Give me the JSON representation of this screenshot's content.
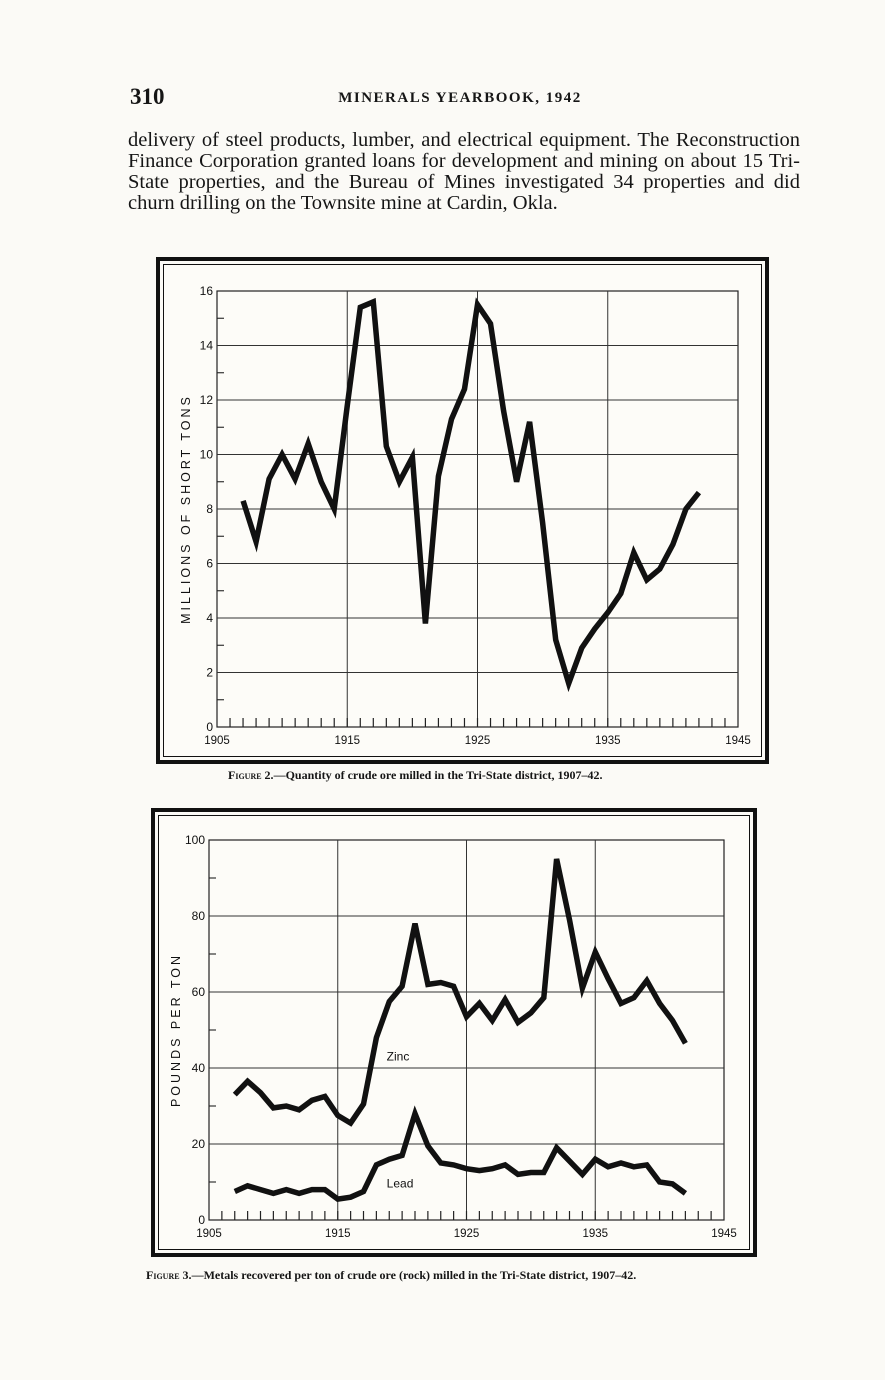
{
  "header": {
    "page_number": "310",
    "running_head": "MINERALS YEARBOOK, 1942"
  },
  "body_text": "delivery of steel products, lumber, and electrical equipment. The Reconstruction Finance Corporation granted loans for development and mining on about 15 Tri-State properties, and the Bureau of Mines investigated 34 properties and did churn drilling on the Townsite mine at Cardin, Okla.",
  "figures": [
    {
      "caption_label": "Figure 2.",
      "caption_text": "—Quantity of crude ore milled in the Tri-State district, 1907–42."
    },
    {
      "caption_label": "Figure 3.",
      "caption_text": "—Metals recovered per ton of crude ore (rock) milled in the Tri-State district, 1907–42."
    }
  ],
  "chart_data": [
    {
      "type": "line",
      "title": "",
      "xlabel": "",
      "ylabel": "MILLIONS OF SHORT TONS",
      "xlim": [
        1905,
        1945
      ],
      "ylim": [
        0,
        16
      ],
      "x_ticks": [
        1905,
        1915,
        1925,
        1935,
        1945
      ],
      "y_ticks": [
        0,
        2,
        4,
        6,
        8,
        10,
        12,
        14,
        16
      ],
      "grid": true,
      "series": [
        {
          "name": "",
          "x": [
            1907,
            1908,
            1909,
            1910,
            1911,
            1912,
            1913,
            1914,
            1915,
            1916,
            1917,
            1918,
            1919,
            1920,
            1921,
            1922,
            1923,
            1924,
            1925,
            1926,
            1927,
            1928,
            1929,
            1930,
            1931,
            1932,
            1933,
            1934,
            1935,
            1936,
            1937,
            1938,
            1939,
            1940,
            1941,
            1942
          ],
          "y": [
            8.3,
            6.8,
            9.1,
            10,
            9.1,
            10.4,
            9,
            8,
            11.8,
            15.4,
            15.6,
            10.3,
            9,
            9.9,
            3.8,
            9.2,
            11.3,
            12.4,
            15.5,
            14.8,
            11.6,
            9,
            11.2,
            7.5,
            3.2,
            1.6,
            2.9,
            3.6,
            4.2,
            4.9,
            6.4,
            5.4,
            5.8,
            6.7,
            8,
            8.6
          ]
        }
      ]
    },
    {
      "type": "line",
      "title": "",
      "xlabel": "",
      "ylabel": "POUNDS PER TON",
      "xlim": [
        1905,
        1945
      ],
      "ylim": [
        0,
        100
      ],
      "x_ticks": [
        1905,
        1915,
        1925,
        1935,
        1945
      ],
      "y_ticks": [
        0,
        20,
        40,
        60,
        80,
        100
      ],
      "grid": true,
      "series": [
        {
          "name": "Zinc",
          "x": [
            1907,
            1908,
            1909,
            1910,
            1911,
            1912,
            1913,
            1914,
            1915,
            1916,
            1917,
            1918,
            1919,
            1920,
            1921,
            1922,
            1923,
            1924,
            1925,
            1926,
            1927,
            1928,
            1929,
            1930,
            1931,
            1932,
            1933,
            1934,
            1935,
            1936,
            1937,
            1938,
            1939,
            1940,
            1941,
            1942
          ],
          "y": [
            33,
            36.5,
            33.5,
            29.5,
            30,
            29,
            31.5,
            32.5,
            27.5,
            25.5,
            30.5,
            48,
            57.5,
            61.5,
            78,
            62,
            62.5,
            61.5,
            53.5,
            57,
            52.5,
            58,
            52,
            54.5,
            58.5,
            95,
            79,
            61,
            70.5,
            63.5,
            57,
            58.5,
            63,
            57,
            52.5,
            46.5
          ]
        },
        {
          "name": "Lead",
          "x": [
            1907,
            1908,
            1909,
            1910,
            1911,
            1912,
            1913,
            1914,
            1915,
            1916,
            1917,
            1918,
            1919,
            1920,
            1921,
            1922,
            1923,
            1924,
            1925,
            1926,
            1927,
            1928,
            1929,
            1930,
            1931,
            1932,
            1933,
            1934,
            1935,
            1936,
            1937,
            1938,
            1939,
            1940,
            1941,
            1942
          ],
          "y": [
            7.5,
            9,
            8,
            7,
            8,
            7,
            8,
            8,
            5.5,
            6,
            7.5,
            14.5,
            16,
            17,
            28,
            19.5,
            15,
            14.5,
            13.5,
            13,
            13.5,
            14.5,
            12,
            12.5,
            12.5,
            19,
            15.5,
            12,
            16,
            14,
            15,
            14,
            14.5,
            10,
            9.5,
            7
          ]
        }
      ]
    }
  ]
}
